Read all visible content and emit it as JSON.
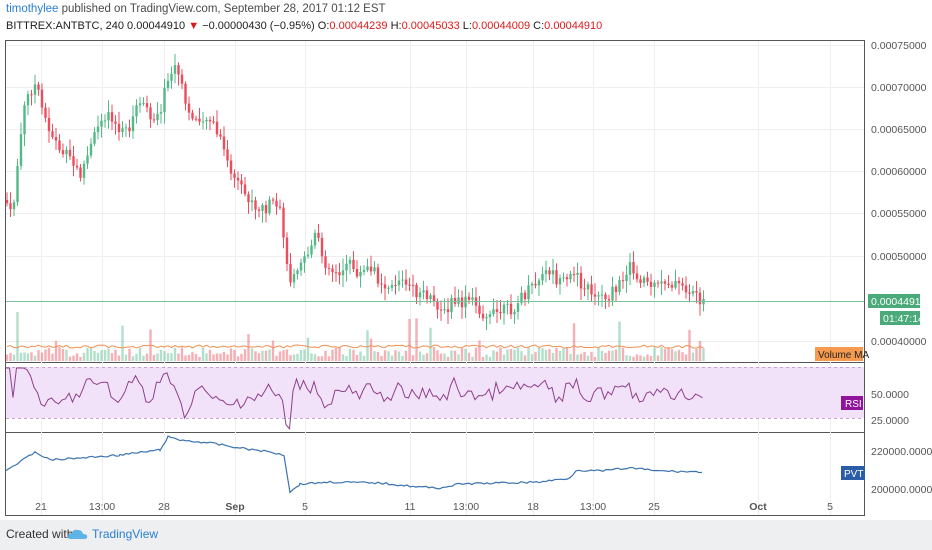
{
  "header": {
    "user": "timothylee",
    "published": "published on TradingView.com, September 28, 2017 01:12 EST",
    "symbol": "BITTREX:ANTBTC, 240",
    "last": "0.00044910",
    "arrow": "▼",
    "change": "−0.00000430 (−0.95%)",
    "o_label": "O:",
    "o_value": "0.00044239",
    "h_label": "H:",
    "h_value": "0.00045033",
    "l_label": "L:",
    "l_value": "0.00044009",
    "c_label": "C:",
    "c_value": "0.00044910"
  },
  "price_axis": {
    "ticks": [
      "0.00075000",
      "0.00070000",
      "0.00065000",
      "0.00060000",
      "0.00055000",
      "0.00050000",
      "0.00040000"
    ],
    "current_price": "0.00044910",
    "countdown": "01:47:14",
    "volume_ma_label": "Volume MA"
  },
  "rsi_axis": {
    "ticks": [
      "50.0000",
      "25.0000"
    ],
    "label": "RSI"
  },
  "pvt_axis": {
    "ticks": [
      "220000.0000",
      "200000.0000"
    ],
    "label": "PVT"
  },
  "time_axis": {
    "labels": [
      "21",
      "13:00",
      "28",
      "Sep",
      "5",
      "11",
      "13:00",
      "18",
      "13:00",
      "25",
      "Oct",
      "5"
    ]
  },
  "footer": {
    "created_with": "Created with",
    "brand": "TradingView"
  },
  "colors": {
    "up": "#53b987",
    "down": "#eb4d5c",
    "rsi": "#8e3f8a",
    "rsi_band": "#f2e2f9",
    "pvt": "#3a73b0",
    "volume_ma": "#f09050",
    "price_line": "#7fbf9a",
    "badge_green": "#4aaa79",
    "badge_orange": "#f59a4e",
    "badge_purple": "#8e1599",
    "badge_blue": "#2b5ea8"
  }
}
